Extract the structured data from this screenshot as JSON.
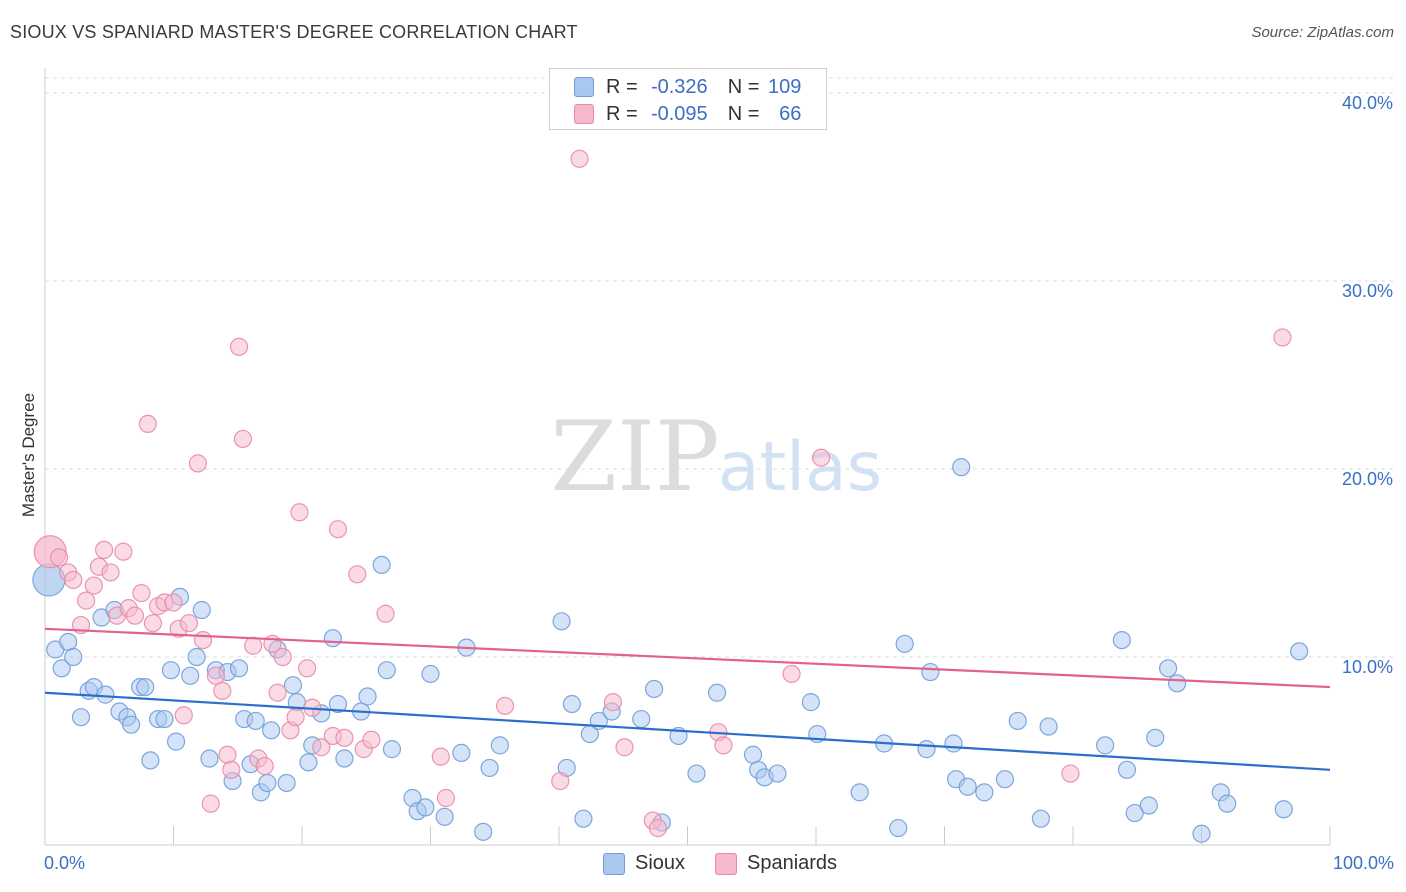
{
  "header": {
    "title": "SIOUX VS SPANIARD MASTER'S DEGREE CORRELATION CHART",
    "source": "Source: ZipAtlas.com"
  },
  "watermark": {
    "zip": "ZIP",
    "atlas": "atlas"
  },
  "stats_legend": {
    "rows": [
      {
        "series": "Sioux",
        "r_label": "R =",
        "r_value": "-0.326",
        "n_label": "N =",
        "n_value": "109"
      },
      {
        "series": "Spaniards",
        "r_label": "R =",
        "r_value": "-0.095",
        "n_label": "N =",
        "n_value": "66"
      }
    ]
  },
  "colors": {
    "sioux_fill": "#a9c8ef",
    "sioux_stroke": "#6f9fd8",
    "sioux_line": "#2b6fca",
    "spaniards_fill": "#f6b8cb",
    "spaniards_stroke": "#e98aa8",
    "spaniards_line": "#e0628d",
    "axis_label": "#3b6fc4",
    "grid": "#dddddd"
  },
  "chart_data": {
    "type": "scatter",
    "title": "SIOUX VS SPANIARD MASTER'S DEGREE CORRELATION CHART",
    "xlabel": "",
    "ylabel": "Master's Degree",
    "xlim": [
      0,
      100
    ],
    "ylim": [
      0,
      40.8
    ],
    "x_tick_labels": [
      "0.0%",
      "100.0%"
    ],
    "y_ticks": [
      10,
      20,
      30,
      40
    ],
    "y_tick_labels": [
      "10.0%",
      "20.0%",
      "30.0%",
      "40.0%"
    ],
    "grid": true,
    "legend": "bottom-center",
    "series": [
      {
        "name": "Sioux",
        "trend": {
          "x": [
            0,
            100
          ],
          "y": [
            8.1,
            4.0
          ]
        },
        "points": [
          {
            "x": 0.3,
            "y": 14.1,
            "big": true
          },
          {
            "x": 0.8,
            "y": 10.4
          },
          {
            "x": 1.3,
            "y": 9.4
          },
          {
            "x": 1.8,
            "y": 10.8
          },
          {
            "x": 2.2,
            "y": 10.0
          },
          {
            "x": 2.8,
            "y": 6.8
          },
          {
            "x": 3.4,
            "y": 8.2
          },
          {
            "x": 3.8,
            "y": 8.4
          },
          {
            "x": 4.4,
            "y": 12.1
          },
          {
            "x": 4.7,
            "y": 8.0
          },
          {
            "x": 5.4,
            "y": 12.5
          },
          {
            "x": 5.8,
            "y": 7.1
          },
          {
            "x": 6.4,
            "y": 6.8
          },
          {
            "x": 6.7,
            "y": 6.4
          },
          {
            "x": 7.4,
            "y": 8.4
          },
          {
            "x": 7.8,
            "y": 8.4
          },
          {
            "x": 8.2,
            "y": 4.5
          },
          {
            "x": 8.8,
            "y": 6.7
          },
          {
            "x": 9.3,
            "y": 6.7
          },
          {
            "x": 9.8,
            "y": 9.3
          },
          {
            "x": 10.2,
            "y": 5.5
          },
          {
            "x": 10.5,
            "y": 13.2
          },
          {
            "x": 11.3,
            "y": 9.0
          },
          {
            "x": 11.8,
            "y": 10.0
          },
          {
            "x": 12.2,
            "y": 12.5
          },
          {
            "x": 12.8,
            "y": 4.6
          },
          {
            "x": 13.3,
            "y": 9.3
          },
          {
            "x": 14.2,
            "y": 9.2
          },
          {
            "x": 14.6,
            "y": 3.4
          },
          {
            "x": 15.1,
            "y": 9.4
          },
          {
            "x": 15.5,
            "y": 6.7
          },
          {
            "x": 16.0,
            "y": 4.3
          },
          {
            "x": 16.4,
            "y": 6.6
          },
          {
            "x": 16.8,
            "y": 2.8
          },
          {
            "x": 17.3,
            "y": 3.3
          },
          {
            "x": 17.6,
            "y": 6.1
          },
          {
            "x": 18.1,
            "y": 10.4
          },
          {
            "x": 18.8,
            "y": 3.3
          },
          {
            "x": 19.3,
            "y": 8.5
          },
          {
            "x": 19.6,
            "y": 7.6
          },
          {
            "x": 20.5,
            "y": 4.4
          },
          {
            "x": 20.8,
            "y": 5.3
          },
          {
            "x": 21.5,
            "y": 7.0
          },
          {
            "x": 22.4,
            "y": 11.0
          },
          {
            "x": 22.8,
            "y": 7.5
          },
          {
            "x": 23.3,
            "y": 4.6
          },
          {
            "x": 24.6,
            "y": 7.1
          },
          {
            "x": 25.1,
            "y": 7.9
          },
          {
            "x": 26.2,
            "y": 14.9
          },
          {
            "x": 26.6,
            "y": 9.3
          },
          {
            "x": 27.0,
            "y": 5.1
          },
          {
            "x": 28.6,
            "y": 2.5
          },
          {
            "x": 29.0,
            "y": 1.8
          },
          {
            "x": 29.6,
            "y": 2.0
          },
          {
            "x": 30.0,
            "y": 9.1
          },
          {
            "x": 31.1,
            "y": 1.5
          },
          {
            "x": 32.4,
            "y": 4.9
          },
          {
            "x": 32.8,
            "y": 10.5
          },
          {
            "x": 34.1,
            "y": 0.7
          },
          {
            "x": 34.6,
            "y": 4.1
          },
          {
            "x": 35.4,
            "y": 5.3
          },
          {
            "x": 40.2,
            "y": 11.9
          },
          {
            "x": 40.6,
            "y": 4.1
          },
          {
            "x": 41.0,
            "y": 7.5
          },
          {
            "x": 41.9,
            "y": 1.4
          },
          {
            "x": 42.4,
            "y": 5.9
          },
          {
            "x": 43.1,
            "y": 6.6
          },
          {
            "x": 44.1,
            "y": 7.1
          },
          {
            "x": 46.4,
            "y": 6.7
          },
          {
            "x": 47.4,
            "y": 8.3
          },
          {
            "x": 48.0,
            "y": 1.2
          },
          {
            "x": 49.3,
            "y": 5.8
          },
          {
            "x": 50.7,
            "y": 3.8
          },
          {
            "x": 52.3,
            "y": 8.1
          },
          {
            "x": 55.1,
            "y": 4.8
          },
          {
            "x": 55.5,
            "y": 4.0
          },
          {
            "x": 56.0,
            "y": 3.6
          },
          {
            "x": 57.0,
            "y": 3.8
          },
          {
            "x": 59.6,
            "y": 7.6
          },
          {
            "x": 60.1,
            "y": 5.9
          },
          {
            "x": 63.4,
            "y": 2.8
          },
          {
            "x": 65.3,
            "y": 5.4
          },
          {
            "x": 66.4,
            "y": 0.9
          },
          {
            "x": 66.9,
            "y": 10.7
          },
          {
            "x": 68.6,
            "y": 5.1
          },
          {
            "x": 68.9,
            "y": 9.2
          },
          {
            "x": 70.7,
            "y": 5.4
          },
          {
            "x": 70.9,
            "y": 3.5
          },
          {
            "x": 71.3,
            "y": 20.1
          },
          {
            "x": 71.8,
            "y": 3.1
          },
          {
            "x": 73.1,
            "y": 2.8
          },
          {
            "x": 74.7,
            "y": 3.5
          },
          {
            "x": 75.7,
            "y": 6.6
          },
          {
            "x": 77.5,
            "y": 1.4
          },
          {
            "x": 78.1,
            "y": 6.3
          },
          {
            "x": 82.5,
            "y": 5.3
          },
          {
            "x": 83.8,
            "y": 10.9
          },
          {
            "x": 84.2,
            "y": 4.0
          },
          {
            "x": 84.8,
            "y": 1.7
          },
          {
            "x": 85.9,
            "y": 2.1
          },
          {
            "x": 86.4,
            "y": 5.7
          },
          {
            "x": 87.4,
            "y": 9.4
          },
          {
            "x": 88.1,
            "y": 8.6
          },
          {
            "x": 90.0,
            "y": 0.6
          },
          {
            "x": 91.5,
            "y": 2.8
          },
          {
            "x": 92.0,
            "y": 2.2
          },
          {
            "x": 96.4,
            "y": 1.9
          },
          {
            "x": 97.6,
            "y": 10.3
          }
        ]
      },
      {
        "name": "Spaniards",
        "trend": {
          "x": [
            0,
            100
          ],
          "y": [
            11.5,
            8.4
          ]
        },
        "points": [
          {
            "x": 0.4,
            "y": 15.6,
            "big": true
          },
          {
            "x": 1.1,
            "y": 15.3
          },
          {
            "x": 1.8,
            "y": 14.5
          },
          {
            "x": 2.2,
            "y": 14.1
          },
          {
            "x": 2.8,
            "y": 11.7
          },
          {
            "x": 3.2,
            "y": 13.0
          },
          {
            "x": 3.8,
            "y": 13.8
          },
          {
            "x": 4.2,
            "y": 14.8
          },
          {
            "x": 4.6,
            "y": 15.7
          },
          {
            "x": 5.1,
            "y": 14.5
          },
          {
            "x": 5.6,
            "y": 12.2
          },
          {
            "x": 6.1,
            "y": 15.6
          },
          {
            "x": 6.5,
            "y": 12.6
          },
          {
            "x": 7.0,
            "y": 12.2
          },
          {
            "x": 7.5,
            "y": 13.4
          },
          {
            "x": 8.0,
            "y": 22.4
          },
          {
            "x": 8.4,
            "y": 11.8
          },
          {
            "x": 8.8,
            "y": 12.7
          },
          {
            "x": 9.3,
            "y": 12.9
          },
          {
            "x": 10.0,
            "y": 12.9
          },
          {
            "x": 10.4,
            "y": 11.5
          },
          {
            "x": 10.8,
            "y": 6.9
          },
          {
            "x": 11.2,
            "y": 11.8
          },
          {
            "x": 11.9,
            "y": 20.3
          },
          {
            "x": 12.3,
            "y": 10.9
          },
          {
            "x": 12.9,
            "y": 2.2
          },
          {
            "x": 13.3,
            "y": 9.0
          },
          {
            "x": 13.8,
            "y": 8.2
          },
          {
            "x": 14.2,
            "y": 4.8
          },
          {
            "x": 14.5,
            "y": 4.0
          },
          {
            "x": 15.1,
            "y": 26.5
          },
          {
            "x": 15.4,
            "y": 21.6
          },
          {
            "x": 16.2,
            "y": 10.6
          },
          {
            "x": 16.6,
            "y": 4.6
          },
          {
            "x": 17.1,
            "y": 4.2
          },
          {
            "x": 17.7,
            "y": 10.7
          },
          {
            "x": 18.1,
            "y": 8.1
          },
          {
            "x": 18.5,
            "y": 10.0
          },
          {
            "x": 19.1,
            "y": 6.1
          },
          {
            "x": 19.5,
            "y": 6.8
          },
          {
            "x": 19.8,
            "y": 17.7
          },
          {
            "x": 20.8,
            "y": 7.3
          },
          {
            "x": 20.4,
            "y": 9.4
          },
          {
            "x": 21.5,
            "y": 5.2
          },
          {
            "x": 22.4,
            "y": 5.8
          },
          {
            "x": 22.8,
            "y": 16.8
          },
          {
            "x": 23.3,
            "y": 5.7
          },
          {
            "x": 24.3,
            "y": 14.4
          },
          {
            "x": 24.8,
            "y": 5.1
          },
          {
            "x": 25.4,
            "y": 5.6
          },
          {
            "x": 26.5,
            "y": 12.3
          },
          {
            "x": 30.8,
            "y": 4.7
          },
          {
            "x": 31.2,
            "y": 2.5
          },
          {
            "x": 35.8,
            "y": 7.4
          },
          {
            "x": 40.1,
            "y": 3.4
          },
          {
            "x": 41.6,
            "y": 36.5
          },
          {
            "x": 44.2,
            "y": 7.6
          },
          {
            "x": 45.1,
            "y": 5.2
          },
          {
            "x": 47.3,
            "y": 1.3
          },
          {
            "x": 47.7,
            "y": 0.9
          },
          {
            "x": 52.4,
            "y": 6.0
          },
          {
            "x": 52.8,
            "y": 5.3
          },
          {
            "x": 58.1,
            "y": 9.1
          },
          {
            "x": 60.4,
            "y": 20.6
          },
          {
            "x": 79.8,
            "y": 3.8
          },
          {
            "x": 96.3,
            "y": 27.0
          }
        ]
      }
    ]
  },
  "bottom_legend": {
    "items": [
      {
        "label": "Sioux"
      },
      {
        "label": "Spaniards"
      }
    ]
  }
}
